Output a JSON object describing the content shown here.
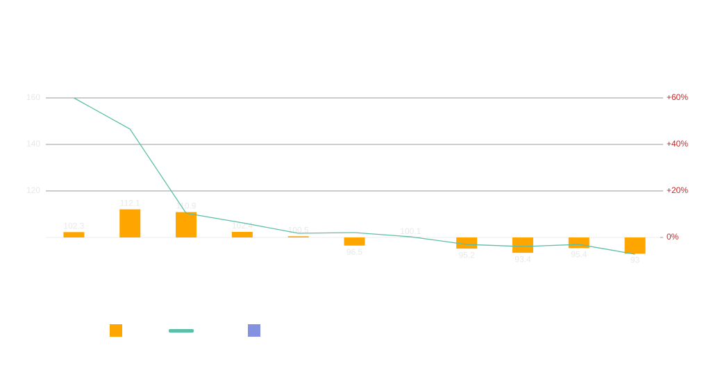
{
  "chart_data": {
    "type": "bar",
    "categories": [
      null,
      null,
      null,
      null,
      null,
      null,
      null,
      null,
      null,
      null,
      null
    ],
    "baseline": 100,
    "series": [
      {
        "type": "bar",
        "color": "#ffa500",
        "values": [
          102.3,
          112.1,
          110.9,
          102.4,
          100.5,
          96.5,
          100.1,
          95.2,
          93.4,
          95.4,
          93.0
        ]
      },
      {
        "type": "line",
        "axis": "y2",
        "color": "#5cbfa8",
        "values": [
          60,
          46.6,
          10.4,
          6.3,
          1.8,
          2.1,
          0.3,
          -3,
          -3.9,
          -3,
          -7.2
        ]
      },
      {
        "type": "bar",
        "color": "#8490e0",
        "values": [
          null,
          null,
          null,
          null,
          null,
          null,
          null,
          null,
          null,
          null,
          null
        ]
      }
    ],
    "ylim": [
      90,
      160
    ],
    "yticks": [
      120,
      140,
      160
    ],
    "y2lim": [
      -10,
      60
    ],
    "y2ticks": [
      {
        "value": 0,
        "label": "0%"
      },
      {
        "value": 20,
        "label": "+20%"
      },
      {
        "value": 40,
        "label": "+40%"
      },
      {
        "value": 60,
        "label": "+60%"
      }
    ],
    "grid": true,
    "legend": "bottom-left"
  }
}
